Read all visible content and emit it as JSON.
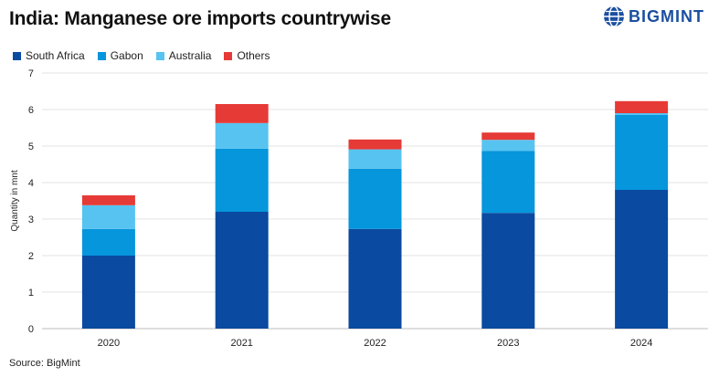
{
  "header": {
    "title": "India: Manganese ore imports countrywise",
    "brand": "BIGMINT"
  },
  "footer": {
    "source": "Source: BigMint"
  },
  "colors": {
    "South Africa": "#0a4aa0",
    "Gabon": "#0596dc",
    "Australia": "#57c3f0",
    "Others": "#e63a36"
  },
  "chart_data": {
    "type": "bar",
    "stacked": true,
    "title": "India: Manganese ore imports countrywise",
    "xlabel": "",
    "ylabel": "Quantity in mnt",
    "ylim": [
      0,
      7
    ],
    "yticks": [
      0,
      1,
      2,
      3,
      4,
      5,
      6,
      7
    ],
    "grid": true,
    "legend": "top-left",
    "categories": [
      "2020",
      "2021",
      "2022",
      "2023",
      "2024"
    ],
    "series": [
      {
        "name": "South Africa",
        "values": [
          2.0,
          3.2,
          2.73,
          3.17,
          3.8
        ]
      },
      {
        "name": "Gabon",
        "values": [
          0.73,
          1.73,
          1.65,
          1.7,
          2.05
        ]
      },
      {
        "name": "Australia",
        "values": [
          0.65,
          0.7,
          0.53,
          0.3,
          0.05
        ]
      },
      {
        "name": "Others",
        "values": [
          0.27,
          0.52,
          0.27,
          0.2,
          0.33
        ]
      }
    ]
  }
}
